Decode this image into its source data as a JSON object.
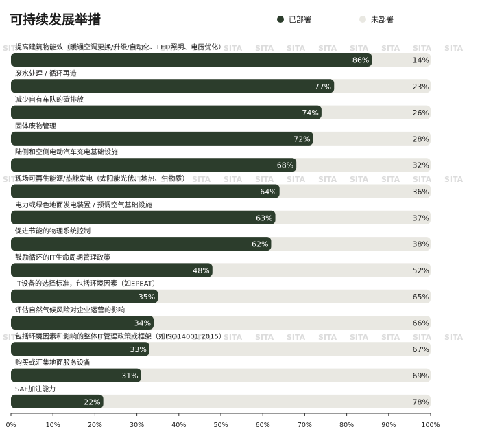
{
  "chart_data": {
    "type": "bar",
    "orientation": "horizontal",
    "stacked": true,
    "title": "可持续发展举措",
    "categories": [
      "提高建筑物能效（暖通空调更换/升级/自动化、LED照明、电压优化）",
      "废水处理 / 循环再造",
      "减少自有车队的碳排放",
      "固体废物管理",
      "陆侧和空侧电动汽车充电基础设施",
      "现场可再生能源/热能发电（太阳能光伏、地热、生物质）",
      "电力或绿色地面发电装置 / 预调空气基础设施",
      "促进节能的物理系统控制",
      "鼓励循环的IT生命周期管理政策",
      "IT设备的选择标准，包括环境因素（如EPEAT）",
      "评估自然气候风险对企业运营的影响",
      "包括环境因素和影响的整体IT管理政策或框架（如ISO14001:2015）",
      "购买或汇集地面服务设备",
      "SAF加注能力"
    ],
    "series": [
      {
        "name": "已部署",
        "color": "#2c3d2c",
        "values": [
          86,
          77,
          74,
          72,
          68,
          64,
          63,
          62,
          48,
          35,
          34,
          33,
          31,
          22
        ],
        "labels": [
          "86%",
          "77%",
          "74%",
          "72%",
          "68%",
          "64%",
          "63%",
          "62%",
          "48%",
          "35%",
          "34%",
          "33%",
          "31%",
          "22%"
        ]
      },
      {
        "name": "未部署",
        "color": "#e9e8e2",
        "values": [
          14,
          23,
          26,
          28,
          32,
          36,
          37,
          38,
          52,
          65,
          66,
          67,
          69,
          78
        ],
        "labels": [
          "14%",
          "23%",
          "26%",
          "28%",
          "32%",
          "36%",
          "37%",
          "38%",
          "52%",
          "65%",
          "66%",
          "67%",
          "69%",
          "78%"
        ]
      }
    ],
    "xlim": [
      0,
      100
    ],
    "xticks": [
      "0%",
      "10%",
      "20%",
      "30%",
      "40%",
      "50%",
      "60%",
      "70%",
      "80%",
      "90%",
      "100%"
    ],
    "legend_position": "top-right",
    "grid": false,
    "watermark": "SITA"
  }
}
